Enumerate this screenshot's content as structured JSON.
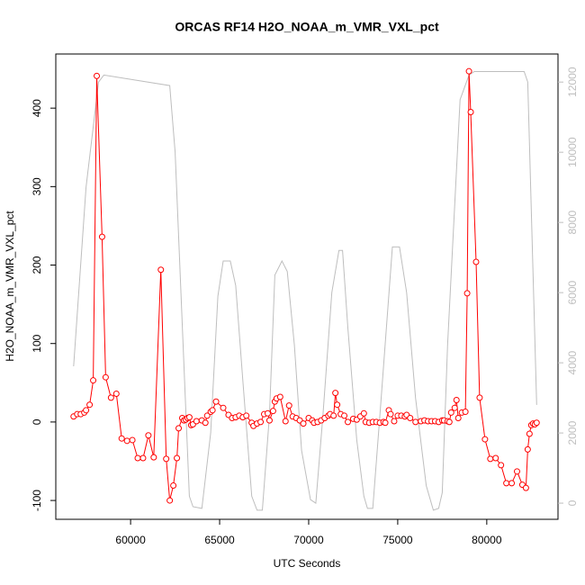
{
  "chart_data": {
    "type": "line",
    "title": "ORCAS RF14 H2O_NOAA_m_VMR_VXL_pct",
    "x_label": "UTC Seconds",
    "y_label": "H2O_NOAA_m_VMR_VXL_pct",
    "xlim": [
      55800,
      84000
    ],
    "xticks": [
      60000,
      65000,
      70000,
      75000,
      80000
    ],
    "ylim": [
      -124,
      469
    ],
    "yticks": [
      -100,
      0,
      100,
      200,
      300,
      400
    ],
    "y2lim": [
      -460,
      12800
    ],
    "y2ticks": [
      0,
      2000,
      4000,
      6000,
      8000,
      10000,
      12000
    ],
    "y2_color": "#bebebe",
    "series": [
      {
        "color": "#bebebe",
        "axis": "y2",
        "markers": false,
        "x": [
          56800,
          57500,
          58200,
          58500,
          62200,
          62500,
          63300,
          63500,
          64000,
          64500,
          64900,
          65200,
          65600,
          65900,
          66300,
          66800,
          67100,
          67400,
          67800,
          68100,
          68500,
          68800,
          69200,
          69600,
          70100,
          70400,
          70800,
          71300,
          71700,
          71900,
          72200,
          72700,
          73100,
          73300,
          73600,
          74000,
          74700,
          75100,
          75500,
          76000,
          76600,
          77000,
          77300,
          77500,
          77800,
          78500,
          79000,
          79300,
          82100,
          82300,
          82800
        ],
        "values": [
          3900,
          9000,
          12000,
          12200,
          11900,
          10000,
          200,
          -100,
          -150,
          2000,
          5900,
          6900,
          6900,
          6200,
          3500,
          200,
          -200,
          -200,
          2500,
          6500,
          6900,
          6600,
          4500,
          1500,
          100,
          0,
          2500,
          6000,
          7200,
          7200,
          5000,
          1800,
          200,
          -150,
          -150,
          2500,
          7300,
          7300,
          6000,
          3000,
          500,
          -200,
          -150,
          300,
          4500,
          11500,
          12200,
          12300,
          12300,
          12000,
          2800
        ]
      },
      {
        "color": "#ff0000",
        "axis": "y",
        "markers": true,
        "x": [
          56800,
          57000,
          57200,
          57400,
          57500,
          57700,
          57900,
          58100,
          58400,
          58600,
          58900,
          59200,
          59500,
          59800,
          60100,
          60400,
          60700,
          61000,
          61300,
          61700,
          62000,
          62200,
          62400,
          62600,
          62700,
          62900,
          63000,
          63100,
          63200,
          63300,
          63400,
          63500,
          63700,
          64000,
          64200,
          64300,
          64500,
          64600,
          64800,
          65200,
          65500,
          65700,
          65900,
          66100,
          66300,
          66500,
          66800,
          66900,
          67100,
          67300,
          67500,
          67700,
          67800,
          68000,
          68100,
          68200,
          68400,
          68700,
          68900,
          69100,
          69300,
          69500,
          69700,
          70000,
          70200,
          70300,
          70500,
          70700,
          70900,
          71100,
          71200,
          71400,
          71500,
          71600,
          71800,
          72000,
          72200,
          72500,
          72700,
          72900,
          73100,
          73200,
          73400,
          73600,
          73800,
          74000,
          74200,
          74300,
          74500,
          74600,
          74800,
          75000,
          75200,
          75400,
          75500,
          75700,
          76000,
          76300,
          76500,
          76700,
          76900,
          77100,
          77300,
          77500,
          77600,
          77800,
          77900,
          78000,
          78200,
          78300,
          78400,
          78600,
          78800,
          78900,
          79000,
          79100,
          79400,
          79600,
          79900,
          80200,
          80500,
          80800,
          81100,
          81400,
          81700,
          82000,
          82200,
          82300,
          82400,
          82500,
          82600,
          82700,
          82800
        ],
        "values": [
          7,
          10,
          10,
          12,
          15,
          22,
          53,
          441,
          236,
          57,
          31,
          36,
          -21,
          -24,
          -23,
          -46,
          -46,
          -17,
          -45,
          194,
          -47,
          -100,
          -81,
          -46,
          -8,
          5,
          2,
          3,
          5,
          6,
          -4,
          -3,
          1,
          2,
          -1,
          8,
          13,
          15,
          26,
          18,
          9,
          5,
          6,
          8,
          6,
          8,
          -1,
          -5,
          -2,
          0,
          10,
          11,
          2,
          14,
          26,
          30,
          32,
          1,
          21,
          7,
          5,
          2,
          -2,
          5,
          2,
          -1,
          0,
          2,
          5,
          8,
          10,
          8,
          37,
          22,
          10,
          8,
          0,
          4,
          3,
          7,
          11,
          0,
          -1,
          0,
          0,
          -1,
          0,
          -1,
          15,
          10,
          1,
          8,
          8,
          7,
          9,
          5,
          0,
          1,
          2,
          1,
          1,
          1,
          0,
          2,
          2,
          1,
          0,
          12,
          18,
          28,
          5,
          12,
          13,
          164,
          447,
          395,
          204,
          31,
          -22,
          -47,
          -46,
          -55,
          -78,
          -78,
          -63,
          -80,
          -84,
          -35,
          -15,
          -4,
          -2,
          -3,
          -1
        ]
      }
    ]
  }
}
